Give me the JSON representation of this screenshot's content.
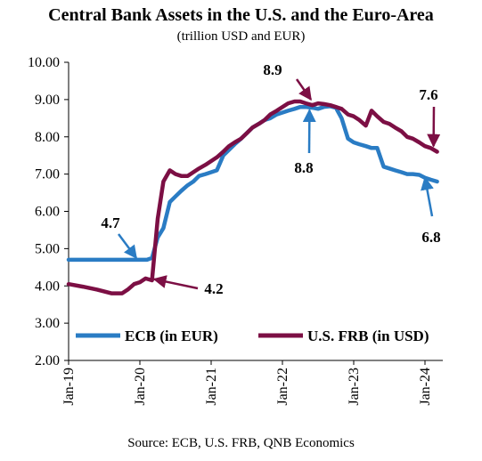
{
  "title": "Central Bank Assets in the U.S. and the Euro-Area",
  "subtitle": "(trillion USD and EUR)",
  "source": "Source: ECB, U.S. FRB, QNB Economics",
  "colors": {
    "ecb": "#2a7cc4",
    "fed": "#7c0f44"
  },
  "chart_data": {
    "type": "line",
    "ylim": [
      2,
      10
    ],
    "xlim": [
      2019.0,
      2024.25
    ],
    "yticks": [
      "10.00",
      "9.00",
      "8.00",
      "7.00",
      "6.00",
      "5.00",
      "4.00",
      "3.00",
      "2.00"
    ],
    "yticks_values": [
      10,
      9,
      8,
      7,
      6,
      5,
      4,
      3,
      2
    ],
    "xticks": [
      "Jan-19",
      "Jan-20",
      "Jan-21",
      "Jan-22",
      "Jan-23",
      "Jan-24"
    ],
    "xticks_values": [
      2019,
      2020,
      2021,
      2022,
      2023,
      2024
    ],
    "grid": false,
    "legend": "bottom-center",
    "series": [
      {
        "name": "ECB (in EUR)",
        "color": "#2a7cc4",
        "x": [
          2019.0,
          2019.2,
          2019.4,
          2019.6,
          2019.8,
          2020.0,
          2020.1,
          2020.17,
          2020.25,
          2020.33,
          2020.42,
          2020.5,
          2020.58,
          2020.67,
          2020.75,
          2020.83,
          2020.92,
          2021.0,
          2021.08,
          2021.17,
          2021.25,
          2021.33,
          2021.42,
          2021.5,
          2021.58,
          2021.67,
          2021.75,
          2021.83,
          2021.92,
          2022.0,
          2022.08,
          2022.17,
          2022.25,
          2022.33,
          2022.42,
          2022.5,
          2022.58,
          2022.67,
          2022.75,
          2022.83,
          2022.92,
          2023.0,
          2023.08,
          2023.17,
          2023.25,
          2023.33,
          2023.42,
          2023.5,
          2023.58,
          2023.67,
          2023.75,
          2023.83,
          2023.92,
          2024.0,
          2024.08,
          2024.17
        ],
        "values": [
          4.7,
          4.7,
          4.7,
          4.7,
          4.7,
          4.7,
          4.7,
          4.75,
          5.3,
          5.55,
          6.25,
          6.4,
          6.55,
          6.7,
          6.8,
          6.95,
          7.0,
          7.05,
          7.1,
          7.5,
          7.65,
          7.8,
          7.95,
          8.1,
          8.25,
          8.35,
          8.45,
          8.5,
          8.6,
          8.65,
          8.7,
          8.75,
          8.8,
          8.8,
          8.78,
          8.75,
          8.8,
          8.82,
          8.78,
          8.5,
          7.95,
          7.85,
          7.8,
          7.75,
          7.7,
          7.7,
          7.2,
          7.15,
          7.1,
          7.05,
          7.0,
          7.0,
          6.98,
          6.9,
          6.85,
          6.8
        ]
      },
      {
        "name": "U.S. FRB (in USD)",
        "color": "#7c0f44",
        "x": [
          2019.0,
          2019.2,
          2019.4,
          2019.6,
          2019.75,
          2019.83,
          2019.92,
          2020.0,
          2020.08,
          2020.17,
          2020.25,
          2020.33,
          2020.42,
          2020.5,
          2020.58,
          2020.67,
          2020.75,
          2020.83,
          2020.92,
          2021.0,
          2021.08,
          2021.17,
          2021.25,
          2021.33,
          2021.42,
          2021.5,
          2021.58,
          2021.67,
          2021.75,
          2021.83,
          2021.92,
          2022.0,
          2022.08,
          2022.17,
          2022.25,
          2022.33,
          2022.42,
          2022.5,
          2022.58,
          2022.67,
          2022.75,
          2022.83,
          2022.92,
          2023.0,
          2023.08,
          2023.17,
          2023.25,
          2023.33,
          2023.42,
          2023.5,
          2023.58,
          2023.67,
          2023.75,
          2023.83,
          2023.92,
          2024.0,
          2024.08,
          2024.17
        ],
        "values": [
          4.05,
          3.98,
          3.9,
          3.8,
          3.8,
          3.9,
          4.05,
          4.1,
          4.2,
          4.15,
          5.8,
          6.8,
          7.1,
          7.0,
          6.95,
          6.95,
          7.05,
          7.15,
          7.25,
          7.35,
          7.45,
          7.6,
          7.75,
          7.85,
          7.95,
          8.1,
          8.25,
          8.35,
          8.45,
          8.6,
          8.7,
          8.8,
          8.9,
          8.95,
          8.95,
          8.9,
          8.85,
          8.9,
          8.88,
          8.85,
          8.8,
          8.75,
          8.6,
          8.55,
          8.45,
          8.3,
          8.7,
          8.55,
          8.4,
          8.35,
          8.25,
          8.15,
          8.0,
          7.95,
          7.85,
          7.75,
          7.7,
          7.6
        ]
      }
    ],
    "annotations": [
      {
        "text": "4.7",
        "series": "ECB (in EUR)"
      },
      {
        "text": "4.2",
        "series": "U.S. FRB (in USD)"
      },
      {
        "text": "8.9",
        "series": "U.S. FRB (in USD)"
      },
      {
        "text": "8.8",
        "series": "ECB (in EUR)"
      },
      {
        "text": "7.6",
        "series": "U.S. FRB (in USD)"
      },
      {
        "text": "6.8",
        "series": "ECB (in EUR)"
      }
    ]
  }
}
